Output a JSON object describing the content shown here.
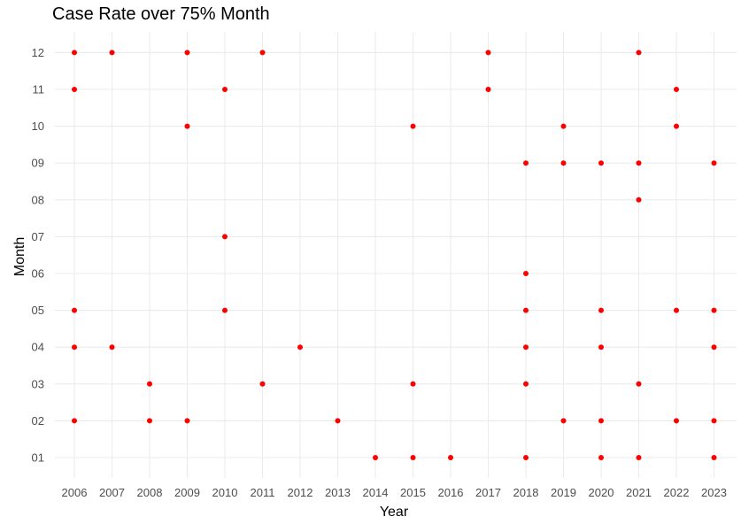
{
  "chart_data": {
    "type": "scatter",
    "title": "Case Rate over 75% Month",
    "xlabel": "Year",
    "ylabel": "Month",
    "x_ticks": [
      "2006",
      "2007",
      "2008",
      "2009",
      "2010",
      "2011",
      "2012",
      "2013",
      "2014",
      "2015",
      "2016",
      "2017",
      "2018",
      "2019",
      "2020",
      "2021",
      "2022",
      "2023"
    ],
    "y_ticks": [
      "01",
      "02",
      "03",
      "04",
      "05",
      "06",
      "07",
      "08",
      "09",
      "10",
      "11",
      "12"
    ],
    "grid": true,
    "legend": "none",
    "point_color": "#ff0000",
    "grid_color": "#ebebeb",
    "points": [
      {
        "x": "2006",
        "y": "12"
      },
      {
        "x": "2006",
        "y": "11"
      },
      {
        "x": "2006",
        "y": "05"
      },
      {
        "x": "2006",
        "y": "04"
      },
      {
        "x": "2006",
        "y": "02"
      },
      {
        "x": "2007",
        "y": "12"
      },
      {
        "x": "2007",
        "y": "04"
      },
      {
        "x": "2008",
        "y": "03"
      },
      {
        "x": "2008",
        "y": "02"
      },
      {
        "x": "2009",
        "y": "12"
      },
      {
        "x": "2009",
        "y": "10"
      },
      {
        "x": "2009",
        "y": "02"
      },
      {
        "x": "2010",
        "y": "11"
      },
      {
        "x": "2010",
        "y": "07"
      },
      {
        "x": "2010",
        "y": "05"
      },
      {
        "x": "2011",
        "y": "12"
      },
      {
        "x": "2011",
        "y": "03"
      },
      {
        "x": "2012",
        "y": "04"
      },
      {
        "x": "2013",
        "y": "02"
      },
      {
        "x": "2014",
        "y": "01"
      },
      {
        "x": "2015",
        "y": "10"
      },
      {
        "x": "2015",
        "y": "03"
      },
      {
        "x": "2015",
        "y": "01"
      },
      {
        "x": "2016",
        "y": "01"
      },
      {
        "x": "2017",
        "y": "12"
      },
      {
        "x": "2017",
        "y": "11"
      },
      {
        "x": "2018",
        "y": "09"
      },
      {
        "x": "2018",
        "y": "06"
      },
      {
        "x": "2018",
        "y": "05"
      },
      {
        "x": "2018",
        "y": "04"
      },
      {
        "x": "2018",
        "y": "03"
      },
      {
        "x": "2018",
        "y": "01"
      },
      {
        "x": "2019",
        "y": "10"
      },
      {
        "x": "2019",
        "y": "09"
      },
      {
        "x": "2019",
        "y": "02"
      },
      {
        "x": "2020",
        "y": "09"
      },
      {
        "x": "2020",
        "y": "05"
      },
      {
        "x": "2020",
        "y": "04"
      },
      {
        "x": "2020",
        "y": "02"
      },
      {
        "x": "2020",
        "y": "01"
      },
      {
        "x": "2021",
        "y": "12"
      },
      {
        "x": "2021",
        "y": "09"
      },
      {
        "x": "2021",
        "y": "08"
      },
      {
        "x": "2021",
        "y": "03"
      },
      {
        "x": "2021",
        "y": "01"
      },
      {
        "x": "2022",
        "y": "11"
      },
      {
        "x": "2022",
        "y": "10"
      },
      {
        "x": "2022",
        "y": "05"
      },
      {
        "x": "2022",
        "y": "02"
      },
      {
        "x": "2023",
        "y": "09"
      },
      {
        "x": "2023",
        "y": "05"
      },
      {
        "x": "2023",
        "y": "04"
      },
      {
        "x": "2023",
        "y": "02"
      },
      {
        "x": "2023",
        "y": "01"
      }
    ]
  }
}
